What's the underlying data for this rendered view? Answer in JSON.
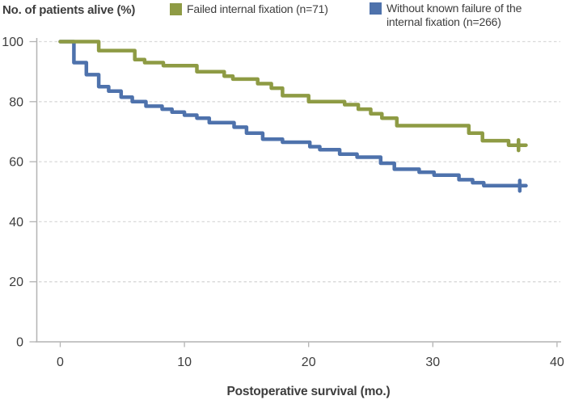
{
  "figure": {
    "y_axis_title": "No. of patients alive (%)",
    "legend": {
      "position": "top",
      "items": [
        {
          "label": "Failed internal fixation (n=71)",
          "color": "#8E9B44"
        },
        {
          "label_line1": "Without known failure of the",
          "label_line2": "internal fixation (n=266)",
          "label_full": "Without known failure of the internal fixation (n=266)",
          "color": "#4E72AC"
        }
      ]
    }
  },
  "chart_data": {
    "type": "line",
    "subtype": "kaplan-meier-step-survival",
    "title": "",
    "xlabel": "Postoperative survival (mo.)",
    "ylabel": "No. of patients alive (%)",
    "xlim": [
      0,
      40
    ],
    "ylim": [
      0,
      100
    ],
    "x_ticks": [
      0,
      10,
      20,
      30,
      40
    ],
    "y_ticks": [
      0,
      20,
      40,
      60,
      80,
      100
    ],
    "grid": "horizontal dashed gridlines at 20,40,60,80,100; solid baseline at 0",
    "legend_position": "top",
    "style": {
      "grid_color": "#d9d9d9",
      "axis_color": "#b3b3b3",
      "text_color": "#3d3d3d",
      "line_width": 4.5
    },
    "series": [
      {
        "id": "failed-fixation",
        "name": "Failed internal fixation (n=71)",
        "color": "#8E9B44",
        "steps_month_percent": [
          [
            0,
            100
          ],
          [
            3.1,
            97
          ],
          [
            6,
            94
          ],
          [
            6.8,
            93
          ],
          [
            8.3,
            92
          ],
          [
            11,
            90
          ],
          [
            13.2,
            88.5
          ],
          [
            13.9,
            87.5
          ],
          [
            15.9,
            86
          ],
          [
            17,
            84.5
          ],
          [
            17.9,
            82
          ],
          [
            20,
            80
          ],
          [
            22.9,
            79
          ],
          [
            24,
            77.5
          ],
          [
            25,
            76
          ],
          [
            25.9,
            74.5
          ],
          [
            27.1,
            72
          ],
          [
            32.9,
            69.5
          ],
          [
            34,
            67
          ],
          [
            36.1,
            65.5
          ]
        ],
        "end_month": 37.5,
        "censor_mark_month": 36.9,
        "final_percent": 65.5
      },
      {
        "id": "without-failure",
        "name": "Without known failure of the internal fixation (n=266)",
        "color": "#4E72AC",
        "steps_month_percent": [
          [
            0,
            100
          ],
          [
            1.1,
            93
          ],
          [
            2.1,
            89
          ],
          [
            3.1,
            85
          ],
          [
            3.9,
            83.5
          ],
          [
            4.9,
            81.5
          ],
          [
            5.8,
            80
          ],
          [
            6.9,
            78.5
          ],
          [
            8.2,
            77.5
          ],
          [
            9,
            76.5
          ],
          [
            10,
            75.5
          ],
          [
            11,
            74.5
          ],
          [
            12,
            73
          ],
          [
            14,
            71.5
          ],
          [
            15,
            69.5
          ],
          [
            16.3,
            67.5
          ],
          [
            17.9,
            66.5
          ],
          [
            20.1,
            65
          ],
          [
            20.9,
            64
          ],
          [
            22.5,
            62.5
          ],
          [
            23.9,
            61.5
          ],
          [
            25.8,
            59.5
          ],
          [
            26.9,
            57.5
          ],
          [
            28.9,
            56.5
          ],
          [
            30.1,
            55.5
          ],
          [
            32.1,
            54
          ],
          [
            33.2,
            53
          ],
          [
            34.1,
            52
          ]
        ],
        "end_month": 37.5,
        "censor_mark_month": 37.0,
        "final_percent": 52
      }
    ]
  }
}
